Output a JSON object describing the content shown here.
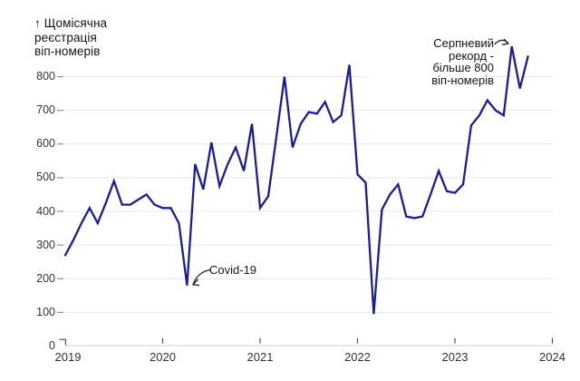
{
  "y_axis_title_lines": [
    "↑ Щомісячна",
    "реєстрація",
    "віп-номерів"
  ],
  "annotations": {
    "covid": {
      "label": "Covid-19"
    },
    "record": {
      "lines": [
        "Серпневий",
        "рекорд -",
        "більше 800",
        "віп-номерів"
      ]
    }
  },
  "colors": {
    "line": "#1c1c99",
    "grid": "#e7e7e7",
    "axis_line": "#d2d2d2",
    "y_tick": "#8f8f8f",
    "x_tick": "#4f4f4f",
    "label": "#333333",
    "annotation_text": "#141414"
  },
  "chart_data": {
    "type": "line",
    "title": "Щомісячна реєстрація віп-номерів",
    "xlabel": "",
    "ylabel": "Щомісячна реєстрація віп-номерів",
    "x_start": "2019-01",
    "x_end": "2023-10",
    "x_tick_labels": [
      "2019",
      "2020",
      "2021",
      "2022",
      "2023",
      "2024"
    ],
    "y_ticks": [
      0,
      100,
      200,
      300,
      400,
      500,
      600,
      700,
      800
    ],
    "ylim": [
      0,
      900
    ],
    "grid": "horizontal",
    "legend": "none",
    "series": [
      {
        "name": "віп-номери",
        "values": [
          270,
          315,
          365,
          410,
          365,
          425,
          490,
          420,
          420,
          435,
          450,
          420,
          410,
          410,
          365,
          180,
          540,
          465,
          605,
          475,
          540,
          590,
          520,
          660,
          410,
          445,
          620,
          800,
          590,
          660,
          695,
          690,
          725,
          665,
          685,
          835,
          510,
          485,
          95,
          405,
          450,
          480,
          385,
          380,
          385,
          450,
          520,
          460,
          455,
          480,
          655,
          685,
          730,
          700,
          685,
          890,
          765,
          860
        ]
      }
    ],
    "annotated_points": [
      {
        "label": "Covid-19",
        "month": "2020-04",
        "value": 180
      },
      {
        "label": "Серпневий рекорд - більше 800 віп-номерів",
        "month": "2023-08",
        "value": 890
      }
    ]
  }
}
